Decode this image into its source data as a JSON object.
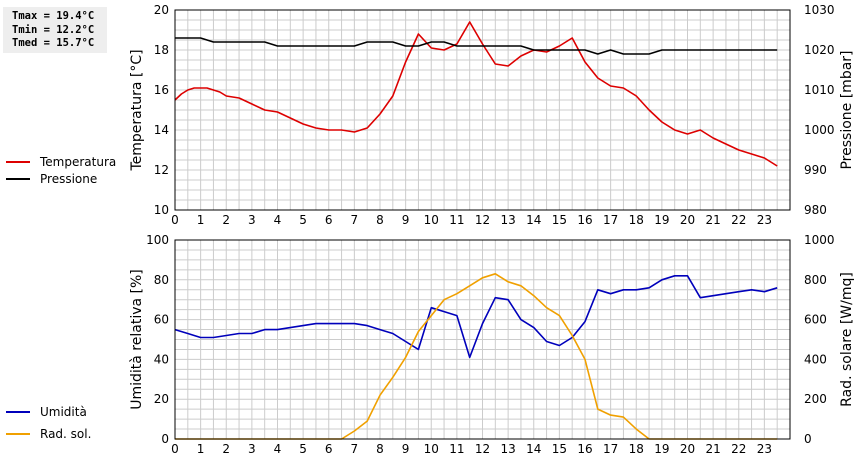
{
  "stats": {
    "tmax": "Tmax = 19.4°C",
    "tmin": "Tmin = 12.2°C",
    "tmed": "Tmed = 15.7°C"
  },
  "colors": {
    "temperature": "#dd0000",
    "pressure": "#000000",
    "humidity": "#0000bb",
    "radiation": "#f0a000",
    "grid": "#cccccc"
  },
  "chart_data": [
    {
      "type": "line",
      "x_label_ticks": [
        0,
        1,
        2,
        3,
        4,
        5,
        6,
        7,
        8,
        9,
        10,
        11,
        12,
        13,
        14,
        15,
        16,
        17,
        18,
        19,
        20,
        21,
        22,
        23
      ],
      "xlim": [
        0,
        24
      ],
      "ylabel_left": "Temperatura [°C]",
      "ylabel_right": "Pressione [mbar]",
      "ylim_left": [
        10,
        20
      ],
      "ylim_right": [
        980,
        1030
      ],
      "yticks_left": [
        10,
        12,
        14,
        16,
        18,
        20
      ],
      "yticks_right": [
        980,
        990,
        1000,
        1010,
        1020,
        1030
      ],
      "series": [
        {
          "name": "Temperatura",
          "axis": "left",
          "color_key": "temperature",
          "x": [
            0,
            0.25,
            0.5,
            0.75,
            1,
            1.25,
            1.5,
            1.75,
            2,
            2.5,
            3,
            3.5,
            4,
            4.5,
            5,
            5.5,
            6,
            6.5,
            7,
            7.5,
            8,
            8.5,
            9,
            9.5,
            10,
            10.5,
            11,
            11.5,
            12,
            12.5,
            13,
            13.5,
            14,
            14.5,
            15,
            15.5,
            16,
            16.5,
            17,
            17.5,
            18,
            18.5,
            19,
            19.5,
            20,
            20.5,
            21,
            21.5,
            22,
            22.5,
            23,
            23.5
          ],
          "y": [
            15.5,
            15.8,
            16.0,
            16.1,
            16.1,
            16.1,
            16.0,
            15.9,
            15.7,
            15.6,
            15.3,
            15.0,
            14.9,
            14.6,
            14.3,
            14.1,
            14.0,
            14.0,
            13.9,
            14.1,
            14.8,
            15.7,
            17.4,
            18.8,
            18.1,
            18.0,
            18.3,
            19.4,
            18.3,
            17.3,
            17.2,
            17.7,
            18.0,
            17.9,
            18.2,
            18.6,
            17.4,
            16.6,
            16.2,
            16.1,
            15.7,
            15.0,
            14.4,
            14.0,
            13.8,
            14.0,
            13.6,
            13.3,
            13.0,
            12.8,
            12.6,
            12.2
          ]
        },
        {
          "name": "Pressione",
          "axis": "right",
          "color_key": "pressure",
          "x": [
            0,
            0.5,
            1,
            1.5,
            2,
            2.5,
            3,
            3.5,
            4,
            4.5,
            5,
            5.5,
            6,
            6.5,
            7,
            7.5,
            8,
            8.5,
            9,
            9.5,
            10,
            10.5,
            11,
            11.5,
            12,
            12.5,
            13,
            13.5,
            14,
            14.5,
            15,
            15.5,
            16,
            16.5,
            17,
            17.5,
            18,
            18.5,
            19,
            19.5,
            20,
            20.5,
            21,
            21.5,
            22,
            22.5,
            23,
            23.5
          ],
          "y": [
            1023,
            1023,
            1023,
            1022,
            1022,
            1022,
            1022,
            1022,
            1021,
            1021,
            1021,
            1021,
            1021,
            1021,
            1021,
            1022,
            1022,
            1022,
            1021,
            1021,
            1022,
            1022,
            1021,
            1021,
            1021,
            1021,
            1021,
            1021,
            1020,
            1020,
            1020,
            1020,
            1020,
            1019,
            1020,
            1019,
            1019,
            1019,
            1020,
            1020,
            1020,
            1020,
            1020,
            1020,
            1020,
            1020,
            1020,
            1020
          ]
        }
      ]
    },
    {
      "type": "line",
      "x_label_ticks": [
        0,
        1,
        2,
        3,
        4,
        5,
        6,
        7,
        8,
        9,
        10,
        11,
        12,
        13,
        14,
        15,
        16,
        17,
        18,
        19,
        20,
        21,
        22,
        23
      ],
      "xlim": [
        0,
        24
      ],
      "ylabel_left": "Umidità relativa [%]",
      "ylabel_right": "Rad. solare [W/mq]",
      "ylim_left": [
        0,
        100
      ],
      "ylim_right": [
        0,
        1000
      ],
      "yticks_left": [
        0,
        20,
        40,
        60,
        80,
        100
      ],
      "yticks_right": [
        0,
        200,
        400,
        600,
        800,
        1000
      ],
      "series": [
        {
          "name": "Umidità",
          "axis": "left",
          "color_key": "humidity",
          "x": [
            0,
            0.5,
            1,
            1.5,
            2,
            2.5,
            3,
            3.5,
            4,
            4.5,
            5,
            5.5,
            6,
            6.5,
            7,
            7.5,
            8,
            8.5,
            9,
            9.5,
            10,
            10.5,
            11,
            11.5,
            12,
            12.5,
            13,
            13.5,
            14,
            14.5,
            15,
            15.5,
            16,
            16.5,
            17,
            17.5,
            18,
            18.5,
            19,
            19.5,
            20,
            20.5,
            21,
            21.5,
            22,
            22.5,
            23,
            23.5
          ],
          "y": [
            55,
            53,
            51,
            51,
            52,
            53,
            53,
            55,
            55,
            56,
            57,
            58,
            58,
            58,
            58,
            57,
            55,
            53,
            49,
            45,
            66,
            64,
            62,
            41,
            58,
            71,
            70,
            60,
            56,
            49,
            47,
            51,
            59,
            75,
            73,
            75,
            75,
            76,
            80,
            82,
            82,
            71,
            72,
            73,
            74,
            75,
            74,
            76
          ]
        },
        {
          "name": "Rad. sol.",
          "axis": "right",
          "color_key": "radiation",
          "x": [
            0,
            1,
            2,
            3,
            4,
            5,
            6,
            6.5,
            7,
            7.5,
            8,
            8.5,
            9,
            9.5,
            10,
            10.5,
            11,
            11.5,
            12,
            12.5,
            13,
            13.5,
            14,
            14.5,
            15,
            15.5,
            16,
            16.5,
            17,
            17.5,
            18,
            18.5,
            19,
            20,
            21,
            22,
            23,
            23.5
          ],
          "y": [
            0,
            0,
            0,
            0,
            0,
            0,
            0,
            0,
            40,
            90,
            220,
            310,
            410,
            540,
            620,
            700,
            730,
            770,
            810,
            830,
            790,
            770,
            720,
            660,
            620,
            520,
            400,
            150,
            120,
            110,
            50,
            0,
            0,
            0,
            0,
            0,
            0,
            0
          ]
        }
      ]
    }
  ]
}
